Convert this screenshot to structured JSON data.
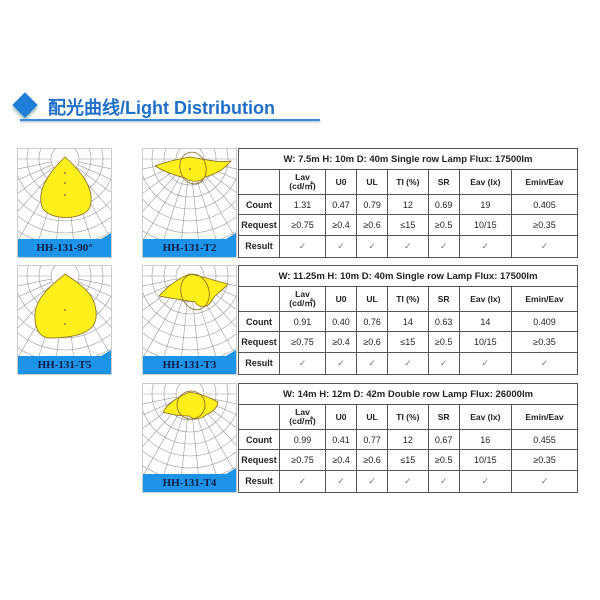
{
  "section": {
    "title": "配光曲线/Light Distribution",
    "accent": "#1f6fc8"
  },
  "diagrams": [
    {
      "label": "HH-131-90°",
      "shape": "type-ii-teardrop"
    },
    {
      "label": "HH-131-T2",
      "shape": "type-2"
    },
    {
      "label": "HH-131-T5",
      "shape": "type-5"
    },
    {
      "label": "HH-131-T3",
      "shape": "type-3"
    },
    {
      "label": "HH-131-T4",
      "shape": "type-4"
    }
  ],
  "tables": [
    {
      "caption": "W: 7.5m  H: 10m  D: 40m  Single row  Lamp Flux: 17500lm",
      "headers": [
        "",
        "Lav\n(cd/㎡)",
        "U0",
        "UL",
        "TI (%)",
        "SR",
        "Eav (lx)",
        "Emin/Eav"
      ],
      "rows": [
        [
          "Count",
          "1.31",
          "0.47",
          "0.79",
          "12",
          "0.69",
          "19",
          "0.405"
        ],
        [
          "Request",
          "≥0.75",
          "≥0.4",
          "≥0.6",
          "≤15",
          "≥0.5",
          "10/15",
          "≥0.35"
        ],
        [
          "Result",
          "✓",
          "✓",
          "✓",
          "✓",
          "✓",
          "✓",
          "✓"
        ]
      ]
    },
    {
      "caption": "W: 11.25m  H: 10m  D: 40m  Single row  Lamp Flux: 17500lm",
      "headers": [
        "",
        "Lav\n(cd/㎡)",
        "U0",
        "UL",
        "TI (%)",
        "SR",
        "Eav (lx)",
        "Emin/Eav"
      ],
      "rows": [
        [
          "Count",
          "0.91",
          "0.40",
          "0.76",
          "14",
          "0.63",
          "14",
          "0.409"
        ],
        [
          "Request",
          "≥0.75",
          "≥0.4",
          "≥0.6",
          "≤15",
          "≥0.5",
          "10/15",
          "≥0.35"
        ],
        [
          "Result",
          "✓",
          "✓",
          "✓",
          "✓",
          "✓",
          "✓",
          "✓"
        ]
      ]
    },
    {
      "caption": "W: 14m  H: 12m  D: 42m  Double row  Lamp Flux: 26000lm",
      "headers": [
        "",
        "Lav\n(cd/㎡)",
        "U0",
        "UL",
        "TI (%)",
        "SR",
        "Eav (lx)",
        "Emin/Eav"
      ],
      "rows": [
        [
          "Count",
          "0.99",
          "0.41",
          "0.77",
          "12",
          "0.67",
          "16",
          "0.455"
        ],
        [
          "Request",
          "≥0.75",
          "≥0.4",
          "≥0.6",
          "≤15",
          "≥0.5",
          "10/15",
          "≥0.35"
        ],
        [
          "Result",
          "✓",
          "✓",
          "✓",
          "✓",
          "✓",
          "✓",
          "✓"
        ]
      ]
    }
  ]
}
